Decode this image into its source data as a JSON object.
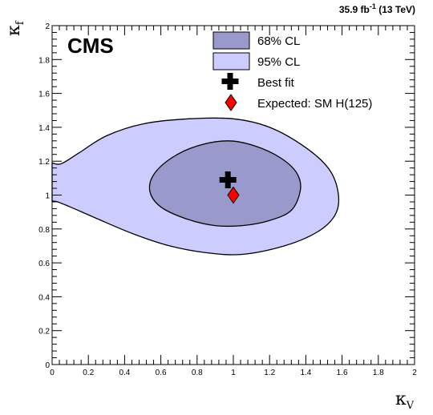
{
  "chart_data": {
    "type": "contour",
    "experiment_label": "CMS",
    "luminosity_label": {
      "prefix": "35.9 fb",
      "exponent": "-1",
      "suffix": " (13 TeV)"
    },
    "xlabel": {
      "symbol": "κ",
      "subscript": "V"
    },
    "ylabel": {
      "symbol": "κ",
      "subscript": "f"
    },
    "xlim": [
      0,
      2
    ],
    "ylim": [
      0,
      2
    ],
    "xticks": [
      "0",
      "0.2",
      "0.4",
      "0.6",
      "0.8",
      "1",
      "1.2",
      "1.4",
      "1.6",
      "1.8",
      "2"
    ],
    "yticks": [
      "0",
      "0.2",
      "0.4",
      "0.6",
      "0.8",
      "1",
      "1.2",
      "1.4",
      "1.6",
      "1.8",
      "2"
    ],
    "legend": {
      "position": "top-right",
      "entries": [
        {
          "label": "68% CL",
          "kind": "fill",
          "color": "#9999cc"
        },
        {
          "label": "95% CL",
          "kind": "fill",
          "color": "#ccccff"
        },
        {
          "label": "Best fit",
          "kind": "cross-marker",
          "color": "#000000"
        },
        {
          "label": "Expected: SM H(125)",
          "kind": "diamond-marker",
          "color": "#ff0000"
        }
      ]
    },
    "best_fit": {
      "x": 0.97,
      "y": 1.09
    },
    "expected_sm": {
      "x": 1.0,
      "y": 1.0
    },
    "contour_68": [
      [
        0.97,
        1.32
      ],
      [
        1.12,
        1.29
      ],
      [
        1.26,
        1.22
      ],
      [
        1.35,
        1.13
      ],
      [
        1.37,
        1.03
      ],
      [
        1.32,
        0.91
      ],
      [
        1.2,
        0.85
      ],
      [
        1.05,
        0.82
      ],
      [
        0.9,
        0.82
      ],
      [
        0.74,
        0.86
      ],
      [
        0.6,
        0.93
      ],
      [
        0.54,
        1.02
      ],
      [
        0.56,
        1.12
      ],
      [
        0.66,
        1.22
      ],
      [
        0.8,
        1.29
      ]
    ],
    "contour_95": [
      [
        0.0,
        1.19
      ],
      [
        0.05,
        1.185
      ],
      [
        0.15,
        1.25
      ],
      [
        0.3,
        1.35
      ],
      [
        0.5,
        1.42
      ],
      [
        0.75,
        1.45
      ],
      [
        1.0,
        1.45
      ],
      [
        1.2,
        1.4
      ],
      [
        1.4,
        1.28
      ],
      [
        1.53,
        1.15
      ],
      [
        1.58,
        1.0
      ],
      [
        1.56,
        0.88
      ],
      [
        1.46,
        0.78
      ],
      [
        1.28,
        0.7
      ],
      [
        1.05,
        0.65
      ],
      [
        0.85,
        0.66
      ],
      [
        0.65,
        0.7
      ],
      [
        0.45,
        0.77
      ],
      [
        0.25,
        0.86
      ],
      [
        0.1,
        0.93
      ],
      [
        0.03,
        0.96
      ],
      [
        0.0,
        0.965
      ]
    ],
    "colors": {
      "contour_68_fill": "#9999cc",
      "contour_95_fill": "#ccccff",
      "contour_line": "#000000",
      "best_fit_marker": "#000000",
      "expected_marker": "#ff0000"
    },
    "grid": false
  }
}
